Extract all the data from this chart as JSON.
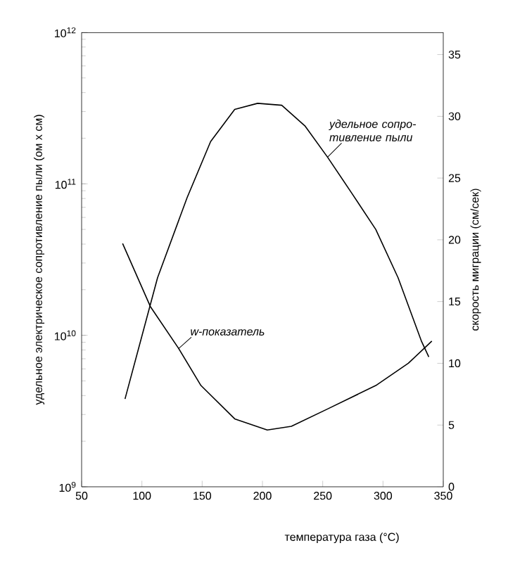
{
  "chart_data": {
    "type": "line",
    "xlabel": "температура газа (°C)",
    "ylabel": "удельное электрическое сопротивление пыли (ом х см)",
    "y2label": "скорость миграции (см/сек)",
    "xlim": [
      50,
      350
    ],
    "xticks": [
      50,
      100,
      150,
      200,
      250,
      300,
      350
    ],
    "ylim": [
      1000000000.0,
      1000000000000.0
    ],
    "log": "y",
    "yticks": [
      {
        "value": 1000000000.0,
        "label": "10$^{9}$"
      },
      {
        "value": 10000000000.0,
        "label": "10$^{10}$"
      },
      {
        "value": 100000000000.0,
        "label": "10$^{11}$"
      },
      {
        "value": 1000000000000.0,
        "label": "10$^{12}$"
      }
    ],
    "y2lim": [
      0,
      36.8
    ],
    "y2ticks": [
      0,
      5,
      10,
      15,
      20,
      25,
      30,
      35
    ],
    "grid": false,
    "marker": "none",
    "line_style": "solid",
    "series": [
      {
        "name": "удельное сопро-тивление пыли",
        "color": "#000000",
        "x": [
          86,
          113,
          137.5,
          157,
          177,
          196,
          216,
          235.5,
          254,
          274,
          294,
          312.5,
          332,
          338
        ],
        "values": [
          3800000000.0,
          24000000000.0,
          81000000000.0,
          190000000000.0,
          310000000000.0,
          340000000000.0,
          330000000000.0,
          240000000000.0,
          150000000000.0,
          87000000000.0,
          50000000000.0,
          24000000000.0,
          9100000000.0,
          7200000000.0
        ]
      },
      {
        "name": "w-показатель",
        "color": "#000000",
        "axis": "y2",
        "x": [
          84,
          107,
          130.5,
          149,
          177,
          204,
          224,
          254,
          294,
          321,
          340.5
        ],
        "values": [
          19.7,
          14.6,
          11.2,
          8.2,
          5.5,
          4.6,
          4.9,
          6.3,
          8.2,
          10.0,
          11.8
        ]
      }
    ]
  }
}
